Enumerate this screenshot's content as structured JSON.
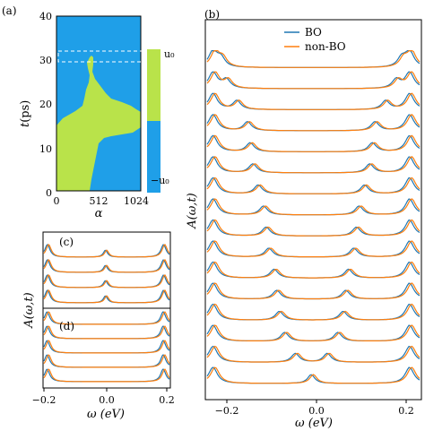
{
  "panel_a": {
    "label": "(a)",
    "ylabel_t": "t",
    "ylabel_unit": "(ps)",
    "xlabel": "α",
    "yticks": [
      "0",
      "10",
      "20",
      "30",
      "40"
    ],
    "xticks": [
      "0",
      "512",
      "1024"
    ],
    "colorbar_top": "u₀",
    "colorbar_bottom": "−u₀",
    "color_positive": "#b9e34a",
    "color_negative": "#1f9fe8"
  },
  "panel_b": {
    "label": "(b)",
    "ylabel": "A(ω,t)",
    "xlabel": "ω (eV)",
    "xticks": [
      "−0.2",
      "0.0",
      "0.2"
    ]
  },
  "panel_c": {
    "label": "(c)"
  },
  "panel_d": {
    "label": "(d)"
  },
  "panel_cd": {
    "ylabel": "A(ω,t)",
    "xlabel": "ω (eV)",
    "xticks": [
      "−0.2",
      "0.0",
      "0.2"
    ]
  },
  "legend": {
    "bo": "BO",
    "nonbo": "non-BO"
  },
  "colors": {
    "bo": "#1f77b4",
    "nonbo": "#ff7f0e"
  },
  "chart_data": [
    {
      "type": "heatmap",
      "panel": "(a)",
      "xlabel": "α",
      "ylabel": "t(ps)",
      "xlim": [
        0,
        1024
      ],
      "ylim": [
        0,
        40
      ],
      "values": [
        "−u₀",
        "u₀"
      ],
      "highlight_t_range": [
        30,
        33
      ]
    },
    {
      "type": "line",
      "panel": "(b)",
      "xlabel": "ω (eV)",
      "ylabel": "A(ω,t)",
      "xlim": [
        -0.2,
        0.2
      ],
      "series": [
        {
          "name": "BO"
        },
        {
          "name": "non-BO"
        }
      ],
      "curve_peak_positions_eV": [
        0.0,
        0.03,
        0.05,
        0.06,
        0.065,
        0.07,
        0.08,
        0.085,
        0.09,
        0.1,
        0.11,
        0.115,
        0.12,
        0.14,
        0.16,
        0.17
      ]
    },
    {
      "type": "line",
      "panel": "(c)",
      "xlim": [
        -0.2,
        0.2
      ],
      "curve_count": 4,
      "center_peak_eV": 0.0
    },
    {
      "type": "line",
      "panel": "(d)",
      "xlim": [
        -0.2,
        0.2
      ],
      "curve_count": 5,
      "flat_center": true
    }
  ]
}
